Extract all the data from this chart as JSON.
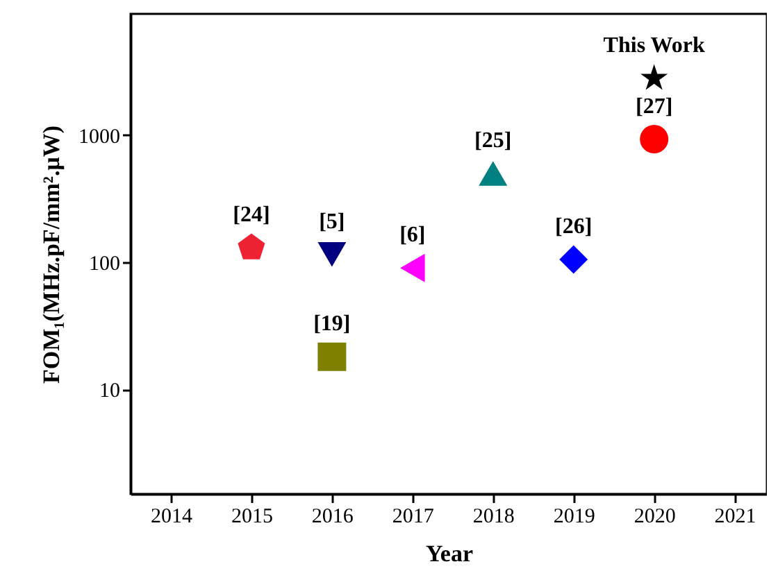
{
  "chart_data": {
    "type": "scatter",
    "xlabel": "Year",
    "ylabel": "FOM₁(MHz.pF/mm².μW)",
    "log": "y",
    "xlim": [
      2013.5,
      2021.4
    ],
    "xticks": [
      2014,
      2015,
      2016,
      2017,
      2018,
      2019,
      2020,
      2021
    ],
    "ylim": [
      1.5,
      9000
    ],
    "yticks": [
      10,
      100,
      1000
    ],
    "grid": false,
    "series": [
      {
        "name": "[24]",
        "color": "#ee2233",
        "x": [
          2015
        ],
        "values": [
          130
        ]
      },
      {
        "name": "[5]",
        "color": "#000080",
        "marker": "triangle-down",
        "x": [
          2016
        ],
        "values": [
          115
        ]
      },
      {
        "name": "[19]",
        "color": "#808000",
        "marker": "square",
        "x": [
          2016
        ],
        "values": [
          18
        ]
      },
      {
        "name": "[6]",
        "color": "#ff00ff",
        "marker": "triangle-left",
        "x": [
          2017
        ],
        "values": [
          90
        ]
      },
      {
        "name": "[25]",
        "color": "#008080",
        "marker": "triangle",
        "x": [
          2018
        ],
        "values": [
          500
        ]
      },
      {
        "name": "[26]",
        "color": "#0000ff",
        "marker": "diamond",
        "x": [
          2019
        ],
        "values": [
          105
        ]
      },
      {
        "name": "[27]",
        "color": "#ff0000",
        "marker": "circle",
        "x": [
          2020
        ],
        "values": [
          930
        ]
      },
      {
        "name": "This Work",
        "color": "#000000",
        "marker": "star",
        "x": [
          2020
        ],
        "values": [
          2800
        ]
      }
    ]
  }
}
